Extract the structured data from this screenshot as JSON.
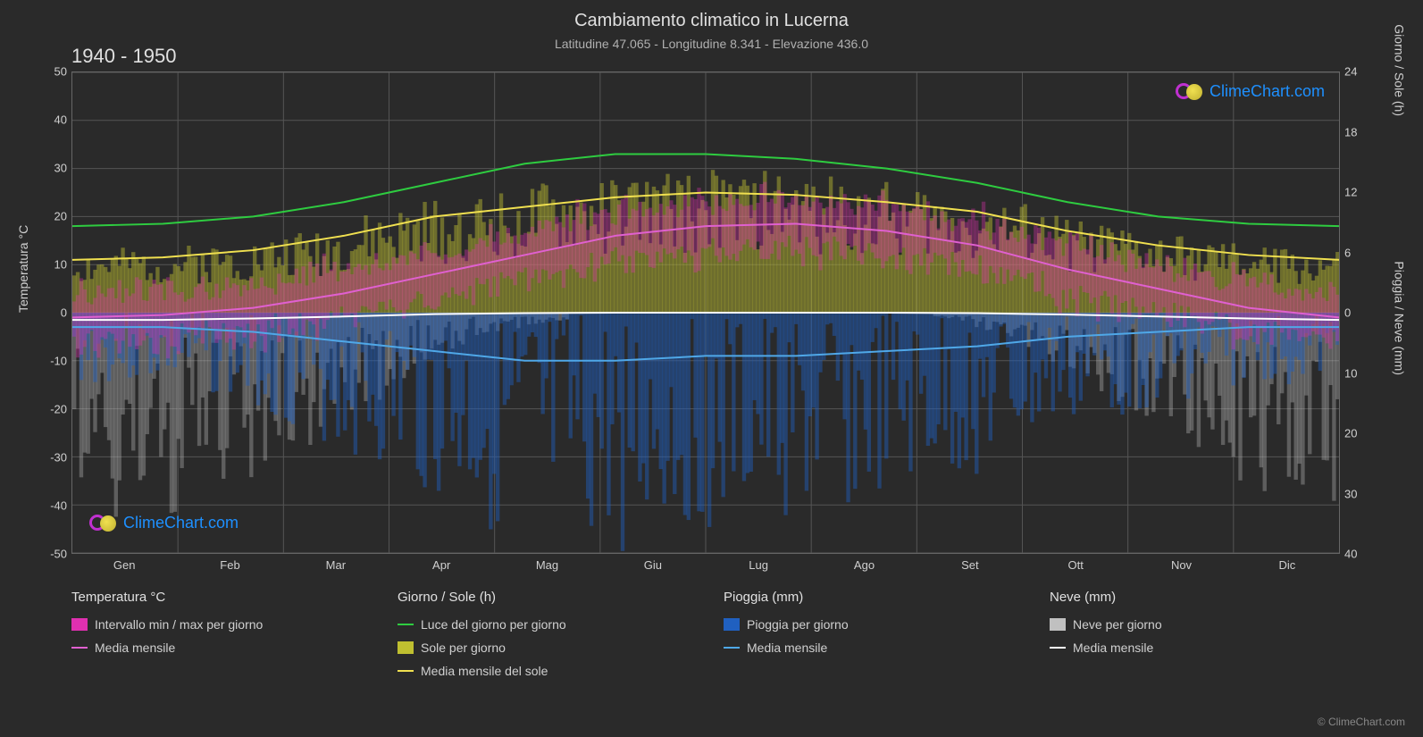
{
  "title": "Cambiamento climatico in Lucerna",
  "subtitle": "Latitudine 47.065 - Longitudine 8.341 - Elevazione 436.0",
  "year_range": "1940 - 1950",
  "copyright": "© ClimeChart.com",
  "watermark_text": "ClimeChart.com",
  "chart": {
    "type": "climate-multi-axis",
    "background_color": "#2a2a2a",
    "plot_bg": "#2a2a2a",
    "grid_color": "#555555",
    "grid_color_outer": "#666666",
    "left_axis": {
      "label": "Temperatura °C",
      "min": -50,
      "max": 50,
      "ticks": [
        -50,
        -40,
        -30,
        -20,
        -10,
        0,
        10,
        20,
        30,
        40,
        50
      ]
    },
    "right_axis_top": {
      "label": "Giorno / Sole (h)",
      "min": 0,
      "max": 24,
      "ticks": [
        0,
        6,
        12,
        18,
        24
      ],
      "maps_to_temp": [
        0,
        12.5,
        25,
        37.5,
        50
      ]
    },
    "right_axis_bottom": {
      "label": "Pioggia / Neve (mm)",
      "min": 0,
      "max": 40,
      "ticks": [
        0,
        10,
        20,
        30,
        40
      ],
      "maps_to_temp": [
        0,
        -12.5,
        -25,
        -37.5,
        -50
      ]
    },
    "x_axis": {
      "labels": [
        "Gen",
        "Feb",
        "Mar",
        "Apr",
        "Mag",
        "Giu",
        "Lug",
        "Ago",
        "Set",
        "Ott",
        "Nov",
        "Dic"
      ]
    },
    "series": {
      "daylight": {
        "color": "#2ecc40",
        "width": 2,
        "data_temp_scale": [
          18,
          18.5,
          20,
          23,
          27,
          31,
          33,
          33,
          32,
          30,
          27,
          23,
          20,
          18.5,
          18
        ]
      },
      "sun_monthly_mean": {
        "color": "#f0e050",
        "width": 2,
        "data_temp_scale": [
          11,
          11.5,
          13,
          16,
          20,
          22,
          24,
          25,
          24.5,
          23,
          21,
          17,
          14,
          12,
          11
        ]
      },
      "temp_monthly_mean": {
        "color": "#e060d0",
        "width": 2,
        "data_temp_scale": [
          -1,
          -0.5,
          1,
          4,
          8,
          12,
          16,
          18,
          18.5,
          17,
          14,
          9,
          5,
          1,
          -1
        ]
      },
      "rain_monthly_mean": {
        "color": "#4fa8e8",
        "width": 2,
        "data_temp_scale": [
          -3,
          -3,
          -4,
          -6,
          -8,
          -10,
          -10,
          -9,
          -9,
          -8,
          -7,
          -5,
          -4,
          -3,
          -3
        ]
      },
      "snow_monthly_mean": {
        "color": "#ffffff",
        "width": 2,
        "data_temp_scale": [
          -1.5,
          -1.5,
          -1.2,
          -0.8,
          -0.3,
          -0.1,
          0,
          0,
          0,
          0,
          -0.1,
          -0.4,
          -0.8,
          -1.2,
          -1.5
        ]
      }
    },
    "fills": {
      "temp_range": {
        "color": "#e030b0",
        "opacity": 0.35
      },
      "sun_daily": {
        "color": "#bfbf30",
        "opacity": 0.45
      },
      "rain_daily": {
        "color": "#2060c0",
        "opacity": 0.45
      },
      "snow_daily": {
        "color": "#c0c0c0",
        "opacity": 0.35
      }
    }
  },
  "legend": {
    "cols": [
      {
        "header": "Temperatura °C",
        "items": [
          {
            "kind": "swatch",
            "color": "#e030b0",
            "label": "Intervallo min / max per giorno"
          },
          {
            "kind": "line",
            "color": "#e060d0",
            "label": "Media mensile"
          }
        ]
      },
      {
        "header": "Giorno / Sole (h)",
        "items": [
          {
            "kind": "line",
            "color": "#2ecc40",
            "label": "Luce del giorno per giorno"
          },
          {
            "kind": "swatch",
            "color": "#bfbf30",
            "label": "Sole per giorno"
          },
          {
            "kind": "line",
            "color": "#f0e050",
            "label": "Media mensile del sole"
          }
        ]
      },
      {
        "header": "Pioggia (mm)",
        "items": [
          {
            "kind": "swatch",
            "color": "#2060c0",
            "label": "Pioggia per giorno"
          },
          {
            "kind": "line",
            "color": "#4fa8e8",
            "label": "Media mensile"
          }
        ]
      },
      {
        "header": "Neve (mm)",
        "items": [
          {
            "kind": "swatch",
            "color": "#c0c0c0",
            "label": "Neve per giorno"
          },
          {
            "kind": "line",
            "color": "#ffffff",
            "label": "Media mensile"
          }
        ]
      }
    ]
  }
}
